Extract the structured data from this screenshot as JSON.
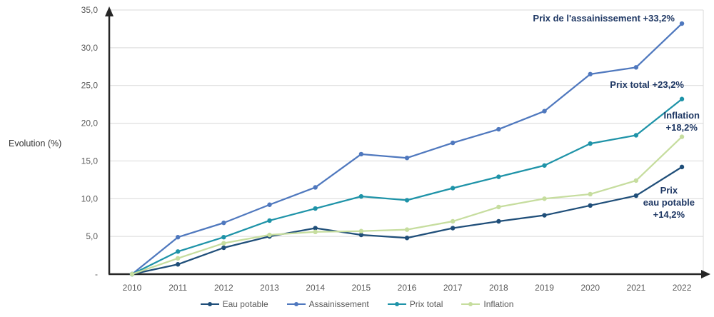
{
  "chart_data": {
    "type": "line",
    "title": "",
    "ylabel": "Evolution (%)",
    "xlabel": "",
    "ylim": [
      0,
      35
    ],
    "grid": true,
    "legend_position": "bottom",
    "x_labels": [
      "2010",
      "2011",
      "2012",
      "2013",
      "2014",
      "2015",
      "2016",
      "2017",
      "2018",
      "2019",
      "2020",
      "2021",
      "2022"
    ],
    "y_ticks": [
      {
        "value": 35,
        "label": "35,0"
      },
      {
        "value": 30,
        "label": "30,0"
      },
      {
        "value": 25,
        "label": "25,0"
      },
      {
        "value": 20,
        "label": "20,0"
      },
      {
        "value": 15,
        "label": "15,0"
      },
      {
        "value": 10,
        "label": "10,0"
      },
      {
        "value": 5,
        "label": "5,0"
      },
      {
        "value": 0,
        "label": "-"
      }
    ],
    "series": [
      {
        "name": "Eau potable",
        "color": "#1F4E79",
        "values": [
          0,
          1.3,
          3.5,
          5.0,
          6.1,
          5.2,
          4.8,
          6.1,
          7.0,
          7.8,
          9.1,
          10.4,
          14.2
        ]
      },
      {
        "name": "Assainissement",
        "color": "#4F78BE",
        "values": [
          0,
          4.9,
          6.8,
          9.2,
          11.5,
          15.9,
          15.4,
          17.4,
          19.2,
          21.6,
          26.5,
          27.4,
          33.2
        ]
      },
      {
        "name": "Prix total",
        "color": "#1E93A8",
        "values": [
          0,
          3.0,
          4.9,
          7.1,
          8.7,
          10.3,
          9.8,
          11.4,
          12.9,
          14.4,
          17.3,
          18.4,
          23.2
        ]
      },
      {
        "name": "Inflation",
        "color": "#C6DD9E",
        "values": [
          0,
          2.1,
          4.1,
          5.2,
          5.6,
          5.7,
          5.9,
          7.0,
          8.9,
          10.0,
          10.6,
          12.4,
          18.2
        ]
      }
    ],
    "annotations": [
      {
        "id": "assainissement",
        "lines": [
          "Prix de l'assainissement +33,2%"
        ]
      },
      {
        "id": "prix-total",
        "lines": [
          "Prix total +23,2%"
        ]
      },
      {
        "id": "inflation",
        "lines": [
          "Inflation",
          "+18,2%"
        ]
      },
      {
        "id": "eau-potable",
        "lines": [
          "Prix",
          "eau potable",
          "+14,2%"
        ]
      }
    ],
    "colors": {
      "annotation_text": "#1F3864",
      "gridline": "#D9D9D9",
      "axis": "#262626",
      "tick_text": "#595959"
    }
  }
}
